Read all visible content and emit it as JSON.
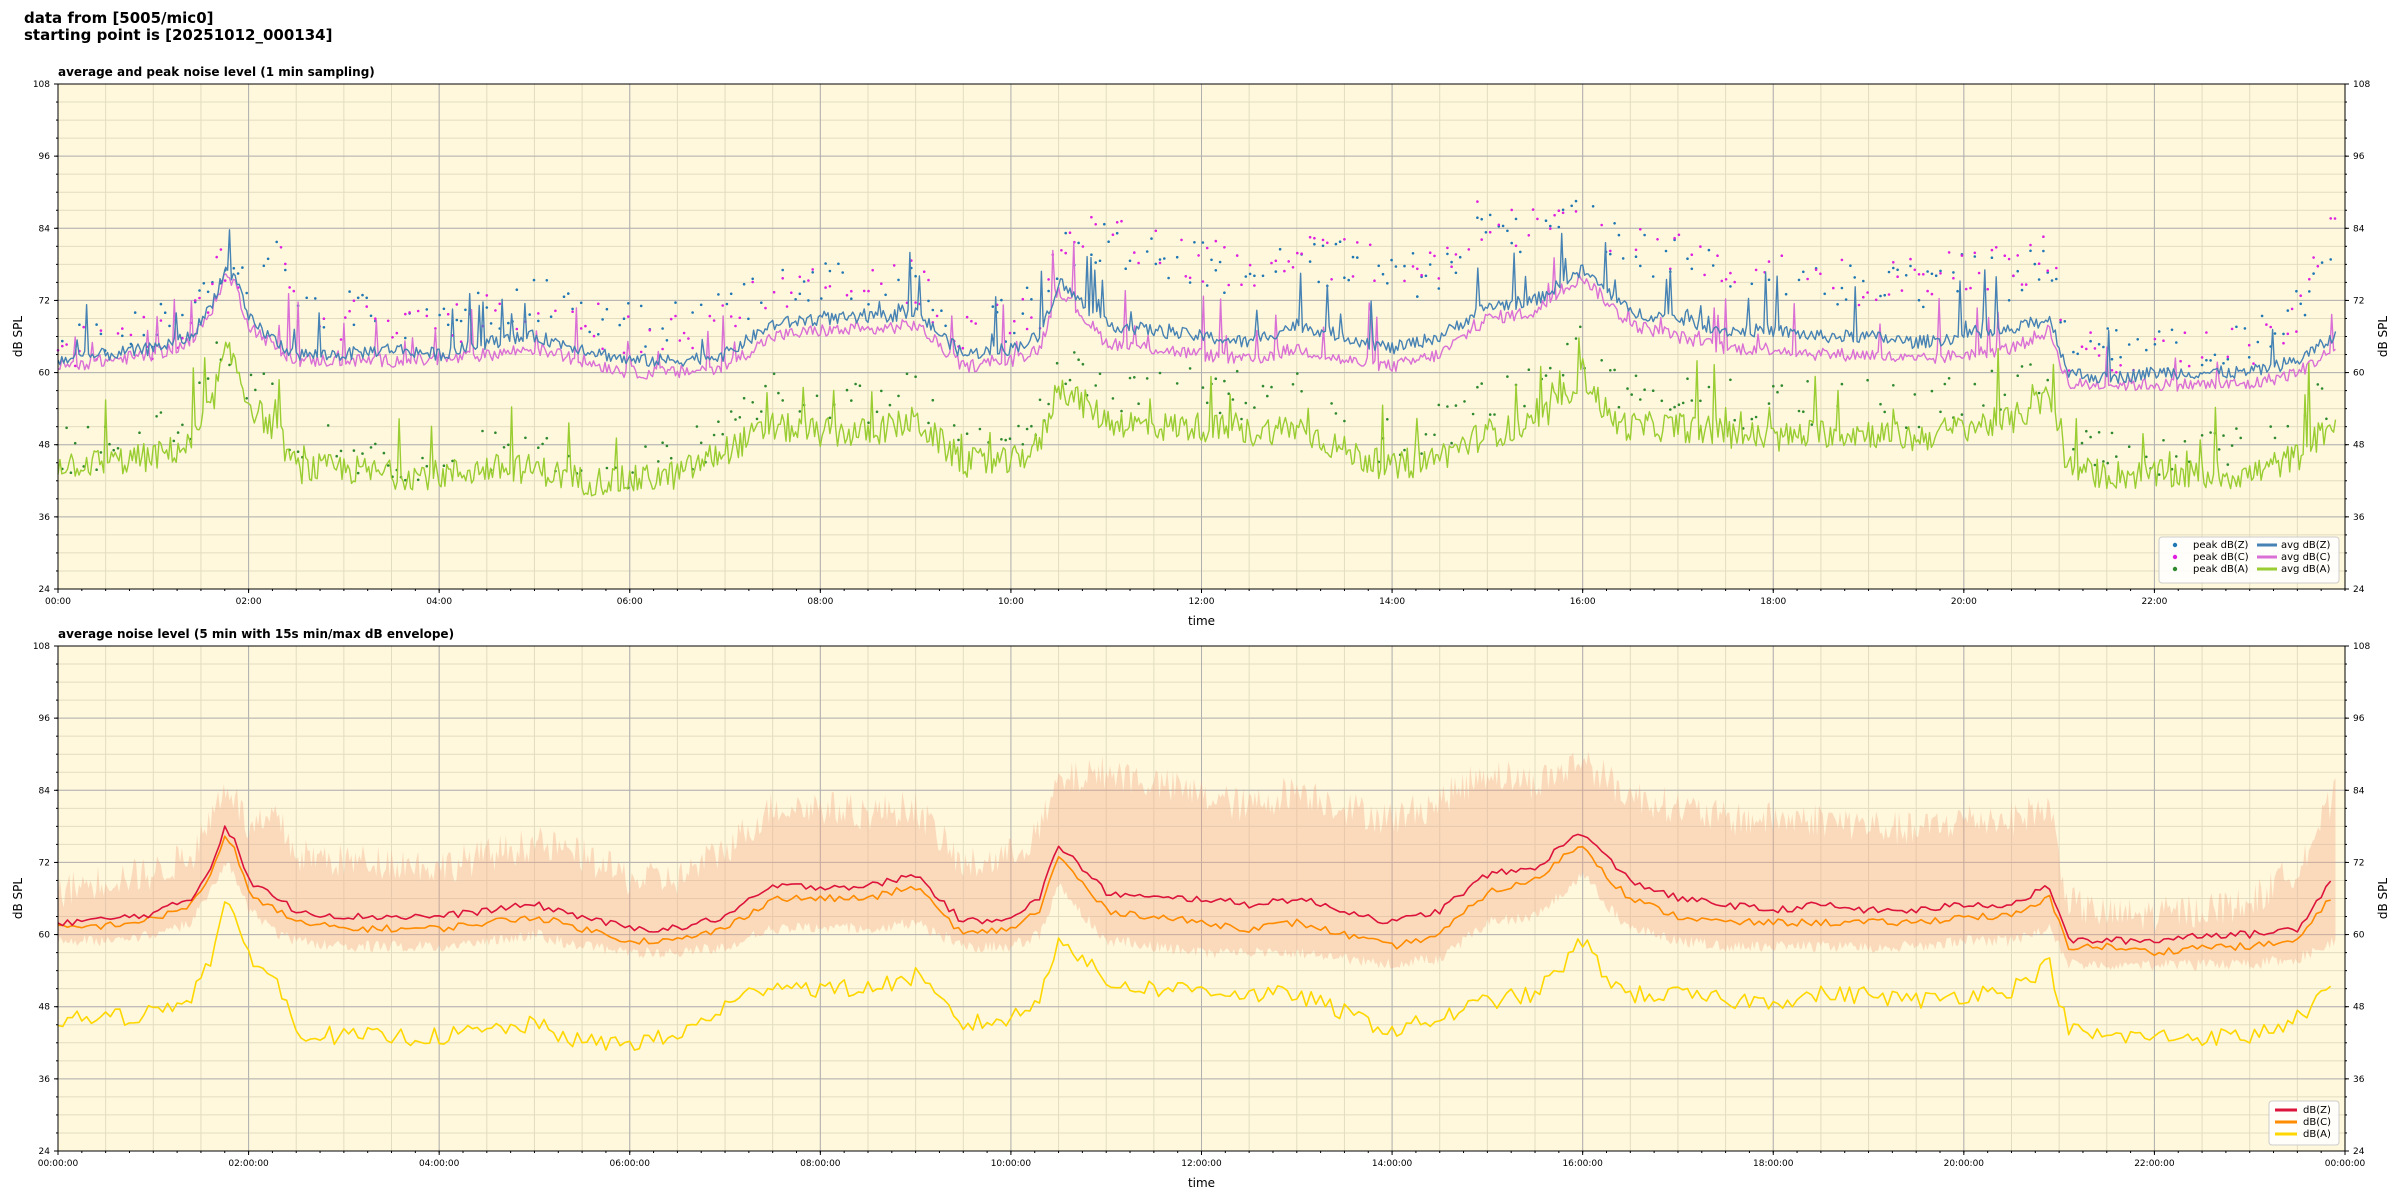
{
  "header": {
    "line1": "data from [5005/mic0]",
    "line2": "starting point is [20251012_000134]"
  },
  "colors": {
    "plot_background": "#fff8dc",
    "grid_major": "#b0b0b0",
    "grid_minor": "#e2dcc0",
    "peak_z": "#1f77b4",
    "peak_c": "#e020e0",
    "peak_a": "#2f8a2f",
    "avg_z": "#4682b4",
    "avg_c": "#da70d6",
    "avg_a": "#9acd32",
    "dbz_line": "#dc143c",
    "dbc_line": "#ff8c00",
    "dba_line": "#ffd700",
    "envelope": "#f4a480"
  },
  "chart_data": [
    {
      "type": "line",
      "title": "average and peak noise level (1 min sampling)",
      "xlabel": "time",
      "ylabel": "dB SPL",
      "ylabel_right": "dB SPL",
      "xlim_hours": [
        0,
        24
      ],
      "ylim": [
        24,
        108
      ],
      "yticks": [
        24,
        36,
        48,
        60,
        72,
        84,
        96,
        108
      ],
      "xtick_hours": [
        0,
        2,
        4,
        6,
        8,
        10,
        12,
        14,
        16,
        18,
        20,
        22
      ],
      "xtick_labels": [
        "00:00",
        "02:00",
        "04:00",
        "06:00",
        "08:00",
        "10:00",
        "12:00",
        "14:00",
        "16:00",
        "18:00",
        "20:00",
        "22:00"
      ],
      "grid": true,
      "legend_position": "lower-right",
      "legend": [
        "peak dB(Z)",
        "peak dB(C)",
        "peak dB(A)",
        "avg dB(Z)",
        "avg dB(C)",
        "avg dB(A)"
      ],
      "x_hours": [
        0.0,
        0.5,
        1.0,
        1.4,
        1.6,
        1.75,
        1.85,
        2.0,
        2.3,
        2.5,
        3.0,
        3.5,
        4.0,
        4.5,
        5.0,
        5.5,
        6.0,
        6.5,
        7.0,
        7.5,
        8.0,
        8.5,
        9.0,
        9.5,
        10.0,
        10.3,
        10.5,
        11.0,
        11.5,
        12.0,
        12.5,
        13.0,
        13.5,
        14.0,
        14.5,
        15.0,
        15.5,
        15.8,
        16.0,
        16.3,
        16.5,
        17.0,
        17.5,
        18.0,
        18.5,
        19.0,
        19.5,
        20.0,
        20.5,
        20.9,
        21.1,
        21.5,
        22.0,
        22.5,
        23.0,
        23.5,
        23.9
      ],
      "series": [
        {
          "name": "avg dB(Z)",
          "kind": "line",
          "values": [
            62,
            63,
            64,
            66,
            71,
            77,
            76,
            69,
            65,
            63,
            63,
            64,
            63,
            65,
            66,
            64,
            62,
            62,
            63,
            68,
            69,
            69,
            70,
            63,
            64,
            66,
            75,
            68,
            67,
            66,
            65,
            68,
            66,
            64,
            66,
            71,
            72,
            75,
            77,
            73,
            70,
            69,
            67,
            67,
            66,
            66,
            65,
            66,
            67,
            69,
            60,
            59,
            60,
            60,
            60,
            62,
            66
          ]
        },
        {
          "name": "avg dB(C)",
          "kind": "line",
          "values": [
            61,
            62,
            63,
            65,
            70,
            76,
            75,
            68,
            64,
            62,
            62,
            62,
            62,
            63,
            64,
            62,
            60,
            60,
            61,
            66,
            67,
            67,
            68,
            61,
            62,
            64,
            74,
            65,
            64,
            63,
            62,
            64,
            62,
            61,
            63,
            69,
            70,
            74,
            76,
            71,
            68,
            66,
            64,
            64,
            63,
            63,
            62,
            63,
            64,
            67,
            58,
            58,
            58,
            58,
            58,
            60,
            64
          ]
        },
        {
          "name": "avg dB(A)",
          "kind": "line",
          "values": [
            45,
            45,
            46,
            48,
            54,
            63,
            62,
            55,
            50,
            44,
            44,
            43,
            43,
            44,
            44,
            42,
            42,
            43,
            47,
            51,
            50,
            50,
            52,
            45,
            45,
            48,
            58,
            52,
            51,
            51,
            50,
            51,
            47,
            44,
            46,
            50,
            51,
            56,
            60,
            52,
            51,
            51,
            50,
            49,
            50,
            50,
            49,
            51,
            52,
            56,
            44,
            43,
            43,
            43,
            43,
            46,
            52
          ]
        },
        {
          "name": "peak dB(Z)",
          "kind": "scatter",
          "values": [
            64,
            66,
            67,
            70,
            75,
            80,
            79,
            72,
            82,
            70,
            70,
            70,
            69,
            71,
            72,
            70,
            68,
            68,
            70,
            74,
            76,
            75,
            76,
            68,
            69,
            72,
            80,
            82,
            80,
            78,
            76,
            79,
            78,
            75,
            78,
            84,
            82,
            84,
            86,
            82,
            80,
            78,
            76,
            76,
            75,
            74,
            74,
            76,
            76,
            79,
            65,
            64,
            64,
            65,
            66,
            70,
            82
          ]
        },
        {
          "name": "peak dB(C)",
          "kind": "scatter",
          "values": [
            63,
            65,
            66,
            69,
            74,
            79,
            78,
            71,
            84,
            68,
            68,
            69,
            68,
            70,
            71,
            69,
            66,
            66,
            69,
            73,
            75,
            74,
            75,
            67,
            68,
            70,
            79,
            84,
            81,
            79,
            78,
            80,
            79,
            76,
            79,
            86,
            83,
            85,
            88,
            83,
            81,
            79,
            77,
            77,
            76,
            75,
            75,
            77,
            77,
            80,
            64,
            63,
            63,
            64,
            65,
            69,
            86
          ]
        },
        {
          "name": "peak dB(A)",
          "kind": "scatter",
          "values": [
            47,
            48,
            49,
            52,
            58,
            66,
            64,
            58,
            56,
            48,
            47,
            46,
            46,
            47,
            48,
            45,
            44,
            46,
            51,
            56,
            55,
            55,
            57,
            48,
            48,
            52,
            62,
            57,
            56,
            57,
            56,
            57,
            52,
            48,
            51,
            56,
            57,
            61,
            65,
            57,
            56,
            56,
            55,
            54,
            55,
            55,
            54,
            56,
            57,
            61,
            47,
            46,
            46,
            46,
            47,
            51,
            57
          ]
        }
      ]
    },
    {
      "type": "line",
      "title": "average noise level (5 min with 15s min/max dB envelope)",
      "xlabel": "time",
      "ylabel": "dB SPL",
      "ylabel_right": "dB SPL",
      "xlim_hours": [
        0,
        24
      ],
      "ylim": [
        24,
        108
      ],
      "yticks": [
        24,
        36,
        48,
        60,
        72,
        84,
        96,
        108
      ],
      "xtick_hours": [
        0,
        2,
        4,
        6,
        8,
        10,
        12,
        14,
        16,
        18,
        20,
        22,
        24
      ],
      "xtick_labels": [
        "00:00:00",
        "02:00:00",
        "04:00:00",
        "06:00:00",
        "08:00:00",
        "10:00:00",
        "12:00:00",
        "14:00:00",
        "16:00:00",
        "18:00:00",
        "20:00:00",
        "22:00:00",
        "00:00:00"
      ],
      "grid": true,
      "legend_position": "lower-right",
      "legend": [
        "dB(Z)",
        "dB(C)",
        "dB(A)"
      ],
      "x_hours": [
        0.0,
        0.5,
        1.0,
        1.4,
        1.6,
        1.75,
        1.85,
        2.0,
        2.3,
        2.5,
        3.0,
        3.5,
        4.0,
        4.5,
        5.0,
        5.5,
        6.0,
        6.5,
        7.0,
        7.5,
        8.0,
        8.5,
        9.0,
        9.5,
        10.0,
        10.3,
        10.5,
        11.0,
        11.5,
        12.0,
        12.5,
        13.0,
        13.5,
        14.0,
        14.5,
        15.0,
        15.5,
        15.8,
        16.0,
        16.3,
        16.5,
        17.0,
        17.5,
        18.0,
        18.5,
        19.0,
        19.5,
        20.0,
        20.5,
        20.9,
        21.1,
        21.5,
        22.0,
        22.5,
        23.0,
        23.5,
        23.9
      ],
      "series": [
        {
          "name": "dB(Z)",
          "kind": "line",
          "values": [
            62,
            62.5,
            63.5,
            66,
            71,
            78,
            76,
            69,
            66,
            64,
            63,
            63,
            63,
            64,
            65,
            63,
            61,
            61,
            63,
            68,
            68,
            68,
            70,
            62,
            63,
            66,
            75,
            67,
            66,
            66,
            65,
            66,
            64,
            62,
            64,
            70,
            71,
            75,
            77,
            72,
            69,
            66,
            65,
            64,
            65,
            64,
            64,
            65,
            65,
            68,
            59,
            59,
            59,
            60,
            60,
            61,
            70
          ]
        },
        {
          "name": "dB(C)",
          "kind": "line",
          "values": [
            61,
            61.5,
            62.5,
            65,
            70,
            76,
            74,
            67,
            64,
            62,
            61,
            61,
            61,
            62,
            63,
            61,
            59,
            59,
            61,
            66,
            66,
            66,
            68,
            60,
            61,
            64,
            73,
            64,
            63,
            62,
            61,
            62,
            60,
            58,
            60,
            67,
            69,
            73,
            75,
            69,
            66,
            63,
            62,
            62,
            62,
            62,
            62,
            63,
            63,
            66,
            58,
            58,
            57,
            58,
            58,
            59,
            67
          ]
        },
        {
          "name": "dB(A)",
          "kind": "line",
          "values": [
            46,
            46,
            47,
            50,
            56,
            65,
            62,
            57,
            52,
            44,
            43,
            43,
            43,
            44,
            45,
            42,
            42,
            43,
            48,
            52,
            51,
            51,
            53,
            45,
            46,
            49,
            60,
            52,
            51,
            51,
            50,
            50,
            47,
            44,
            46,
            49,
            50,
            55,
            59,
            52,
            50,
            50,
            49,
            49,
            50,
            50,
            49,
            50,
            51,
            55,
            44,
            43,
            43,
            43,
            43,
            46,
            52
          ]
        },
        {
          "name": "envelope max",
          "kind": "band-upper",
          "values": [
            66,
            68,
            69,
            72,
            78,
            84,
            82,
            76,
            78,
            72,
            71,
            71,
            70,
            72,
            74,
            72,
            68,
            68,
            73,
            80,
            80,
            79,
            80,
            70,
            72,
            76,
            84,
            86,
            84,
            82,
            80,
            83,
            80,
            78,
            81,
            86,
            84,
            86,
            88,
            84,
            82,
            80,
            78,
            78,
            78,
            77,
            76,
            78,
            78,
            80,
            64,
            62,
            62,
            63,
            64,
            70,
            82
          ]
        },
        {
          "name": "envelope min",
          "kind": "band-lower",
          "values": [
            60,
            60,
            61,
            63,
            68,
            73,
            71,
            65,
            61,
            60,
            59,
            59,
            59,
            60,
            61,
            59,
            58,
            58,
            59,
            62,
            62,
            62,
            63,
            59,
            59,
            61,
            69,
            60,
            59,
            58,
            58,
            58,
            57,
            56,
            57,
            63,
            64,
            68,
            71,
            65,
            62,
            60,
            59,
            59,
            59,
            59,
            59,
            60,
            60,
            62,
            56,
            56,
            56,
            56,
            56,
            57,
            60
          ]
        }
      ]
    }
  ]
}
